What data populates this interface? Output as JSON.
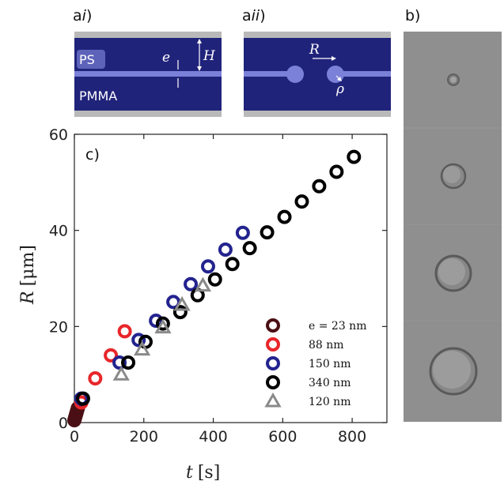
{
  "panels": {
    "ai": {
      "label_a": "a",
      "label_i": "i",
      "label_close": ")"
    },
    "aii": {
      "label_a": "a",
      "label_i": "ii",
      "label_close": ")"
    },
    "b": {
      "label": "b)"
    },
    "c": {
      "label": "c)"
    }
  },
  "schematic": {
    "ps_label": "PS",
    "pmma_label": "PMMA",
    "e_label": "e",
    "H_label": "H",
    "R_label": "R",
    "rho_label": "ρ",
    "colors": {
      "pmma": "#20237a",
      "ps": "#7b80d8",
      "substrate": "#b9b9b9"
    }
  },
  "micrograph": {
    "background": "#8f8f8f"
  },
  "chart_data": {
    "type": "scatter",
    "xlabel_var": "t",
    "xlabel_unit": "[s]",
    "ylabel_var": "R",
    "ylabel_unit": "[μm]",
    "xlim": [
      0,
      900
    ],
    "ylim": [
      0,
      60
    ],
    "xticks": [
      0,
      200,
      400,
      600,
      800
    ],
    "yticks": [
      0,
      20,
      40,
      60
    ],
    "legend_position": "bottom-right",
    "series": [
      {
        "name": "e = 23 nm",
        "color": "#4a0f14",
        "marker": "circle",
        "x": [
          0,
          2,
          4,
          6,
          8,
          10
        ],
        "y": [
          0.5,
          1.0,
          1.5,
          2.0,
          2.5,
          3.0
        ]
      },
      {
        "name": "88 nm",
        "color": "#e8262a",
        "marker": "circle",
        "x": [
          20,
          60,
          105,
          145
        ],
        "y": [
          4.2,
          9.2,
          14.0,
          19.0
        ]
      },
      {
        "name": "150 nm",
        "color": "#23238f",
        "marker": "circle",
        "x": [
          20,
          130,
          185,
          235,
          285,
          335,
          385,
          435,
          485
        ],
        "y": [
          5.0,
          12.5,
          17.2,
          21.2,
          25.1,
          28.8,
          32.5,
          36.0,
          39.5
        ]
      },
      {
        "name": "340 nm",
        "color": "#000000",
        "marker": "circle",
        "x": [
          25,
          155,
          205,
          255,
          305,
          355,
          405,
          455,
          505,
          555,
          605,
          655,
          705,
          755,
          805
        ],
        "y": [
          5.0,
          12.5,
          16.8,
          20.6,
          23.0,
          26.5,
          29.8,
          33.0,
          36.3,
          39.6,
          42.8,
          46.0,
          49.2,
          52.2,
          55.3
        ]
      },
      {
        "name": "120 nm",
        "color": "#8a8a8a",
        "marker": "triangle",
        "x": [
          135,
          195,
          255,
          310,
          370
        ],
        "y": [
          10.0,
          15.2,
          19.8,
          24.5,
          28.5
        ]
      }
    ]
  }
}
